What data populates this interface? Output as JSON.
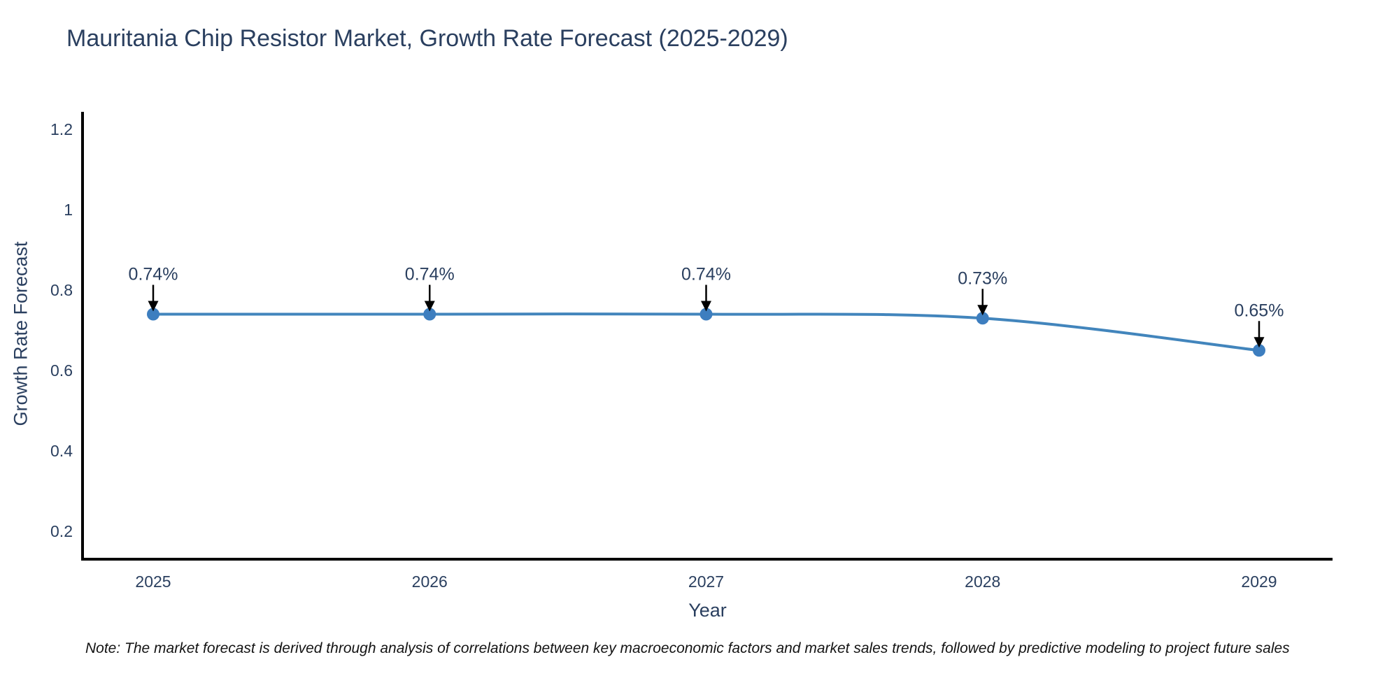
{
  "chart_data": {
    "type": "line",
    "title": "Mauritania Chip Resistor Market, Growth Rate Forecast (2025-2029)",
    "xlabel": "Year",
    "ylabel": "Growth Rate Forecast",
    "x": [
      "2025",
      "2026",
      "2027",
      "2028",
      "2029"
    ],
    "values": [
      0.74,
      0.74,
      0.74,
      0.73,
      0.65
    ],
    "point_labels": [
      "0.74%",
      "0.74%",
      "0.74%",
      "0.73%",
      "0.65%"
    ],
    "yticks": [
      0.2,
      0.4,
      0.6,
      0.8,
      1,
      1.2
    ],
    "ytick_labels": [
      "0.2",
      "0.4",
      "0.6",
      "0.8",
      "1",
      "1.2"
    ],
    "ylim": [
      0.13,
      1.255
    ],
    "grid": false,
    "legend": "none",
    "line_shape": "spline",
    "colors": {
      "line": "#4285bc",
      "marker": "#3d7ebf",
      "axis": "#000000",
      "title_text": "#2a3f5f",
      "tick_text": "#2a3f5f",
      "annotation_text": "#2a3f5f",
      "annotation_arrow": "#000000",
      "note_text": "#141414"
    }
  },
  "note": {
    "text": "Note: The market forecast is derived through analysis of correlations between key macroeconomic factors and market sales trends, followed by predictive modeling to project future sales"
  }
}
